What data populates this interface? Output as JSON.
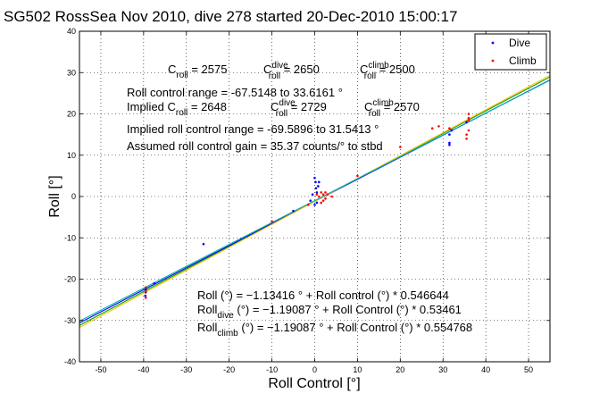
{
  "chart_data": {
    "type": "scatter",
    "title": "SG502 RossSea Nov 2010, dive 278 started 20-Dec-2010 15:00:17",
    "xlabel": "Roll Control [°]",
    "ylabel": "Roll [°]",
    "xlim": [
      -55,
      55
    ],
    "ylim": [
      -40,
      40
    ],
    "xticks": [
      -50,
      -40,
      -30,
      -20,
      -10,
      0,
      10,
      20,
      30,
      40,
      50
    ],
    "yticks": [
      -40,
      -30,
      -20,
      -10,
      0,
      10,
      20,
      30,
      40
    ],
    "grid": true,
    "legend_position": "top-right",
    "series": [
      {
        "name": "Dive",
        "color": "#0000ff",
        "points": [
          [
            -39.5,
            -22.5
          ],
          [
            -39.5,
            -23.2
          ],
          [
            -39.6,
            -24.0
          ],
          [
            -37.5,
            -21.0
          ],
          [
            -26.0,
            -11.5
          ],
          [
            -5.0,
            -3.5
          ],
          [
            -1.0,
            -1.0
          ],
          [
            -0.5,
            0.5
          ],
          [
            0.0,
            4.5
          ],
          [
            0.2,
            3.5
          ],
          [
            0.3,
            2.0
          ],
          [
            0.5,
            1.0
          ],
          [
            0.5,
            -1.5
          ],
          [
            0.8,
            2.5
          ],
          [
            1.0,
            3.5
          ],
          [
            0.0,
            -2.0
          ],
          [
            31.5,
            15.0
          ],
          [
            31.5,
            13.0
          ],
          [
            31.5,
            12.5
          ],
          [
            32.0,
            16.0
          ],
          [
            35.5,
            18.0
          ]
        ]
      },
      {
        "name": "Climb",
        "color": "#ff0000",
        "points": [
          [
            -39.5,
            -23.0
          ],
          [
            -39.5,
            -24.5
          ],
          [
            -39.5,
            -22.0
          ],
          [
            -10.0,
            -6.0
          ],
          [
            -1.5,
            -2.0
          ],
          [
            0.5,
            0.5
          ],
          [
            1.0,
            0.0
          ],
          [
            1.5,
            1.0
          ],
          [
            1.5,
            -1.5
          ],
          [
            2.0,
            0.5
          ],
          [
            2.0,
            -1.0
          ],
          [
            2.5,
            1.0
          ],
          [
            2.5,
            -0.5
          ],
          [
            3.0,
            0.5
          ],
          [
            4.0,
            0.0
          ],
          [
            10.0,
            5.0
          ],
          [
            20.0,
            12.0
          ],
          [
            27.5,
            16.5
          ],
          [
            31.5,
            16.5
          ],
          [
            35.5,
            15.0
          ],
          [
            35.5,
            14.0
          ],
          [
            36.0,
            19.0
          ],
          [
            36.0,
            20.0
          ],
          [
            36.0,
            18.5
          ],
          [
            36.0,
            16.0
          ],
          [
            29.0,
            17.0
          ]
        ]
      }
    ],
    "fit_lines": [
      {
        "name": "Roll",
        "color": "#00a000",
        "intercept": -1.13416,
        "slope": 0.546644
      },
      {
        "name": "Roll dive",
        "color": "#0000ff",
        "intercept": -1.19087,
        "slope": 0.53461
      },
      {
        "name": "Roll climb",
        "color": "#ffc000",
        "intercept": -1.19087,
        "slope": 0.554768
      },
      {
        "name": "reference",
        "color": "#00b0b0",
        "intercept": -1.0,
        "slope": 0.53
      }
    ],
    "annotations": {
      "c_roll": "C",
      "roll_sub": "roll",
      "c_roll_val": " = 2575",
      "c_dive": "C",
      "dive_sup": "dive",
      "c_dive_val": " = 2650",
      "c_climb": "C",
      "climb_sup": "climb",
      "c_climb_val": " = 2500",
      "range_line": "Roll control range = -67.5148 to 33.6161 °",
      "implied_label": "Implied C",
      "implied_c_roll_val": " = 2648",
      "implied_c_dive_val": " = 2729",
      "implied_c_climb_val": " = 2570",
      "implied_range": "Implied roll control range = -69.5896 to 31.5413 °",
      "assumed_gain": "Assumed roll control gain = 35.37 counts/° to stbd",
      "eq1": "Roll (°) = −1.13416 ° + Roll control (°) * 0.546644",
      "eq2_prefix": "Roll",
      "eq2_sub": "dive",
      "eq2_rest": " (°) = −1.19087 ° + Roll Control (°) * 0.53461",
      "eq3_prefix": "Roll",
      "eq3_sub": "climb",
      "eq3_rest": " (°) = −1.19087 ° + Roll Control (°) * 0.554768"
    }
  }
}
